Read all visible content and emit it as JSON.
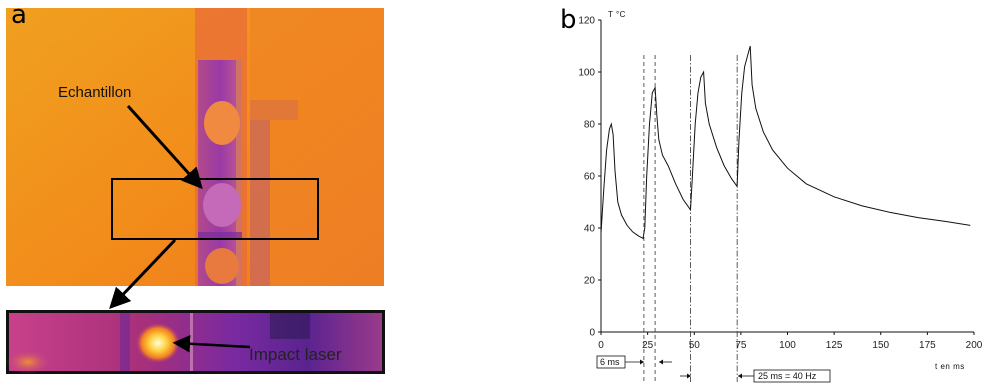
{
  "panel_a": {
    "letter": "a",
    "label_sample": "Echantillon",
    "label_impact": "Impact laser"
  },
  "panel_b": {
    "letter": "b",
    "annotations": {
      "pulse_width": "6 ms",
      "period": "25 ms  =  40 Hz"
    }
  },
  "chart_data": {
    "type": "line",
    "ylabel": "T °C",
    "xlabel": "t en ms",
    "xlim": [
      0,
      200
    ],
    "ylim": [
      0,
      120
    ],
    "xticks": [
      "0",
      "25",
      "50",
      "75",
      "100",
      "125",
      "150",
      "175",
      "200"
    ],
    "yticks": [
      "0",
      "20",
      "40",
      "60",
      "80",
      "100",
      "120"
    ],
    "grid": false,
    "vlines": [
      {
        "x": 23,
        "style": "dashed"
      },
      {
        "x": 29,
        "style": "dashed"
      },
      {
        "x": 48,
        "style": "dashdot"
      },
      {
        "x": 73,
        "style": "dashdot"
      }
    ],
    "series": [
      {
        "x": [
          0,
          1.5,
          3,
          4.5,
          5.5,
          6.5,
          7.5,
          9,
          11,
          14,
          17,
          20,
          22.5,
          23.5,
          24.5,
          26,
          27.5,
          29,
          30,
          31,
          33,
          36,
          40,
          44,
          48,
          49,
          50.5,
          52,
          53.5,
          55,
          56,
          58,
          62,
          66,
          70,
          73,
          74,
          75.5,
          77,
          78.5,
          80,
          81,
          83,
          87,
          92,
          100,
          110,
          125,
          140,
          155,
          170,
          185,
          198
        ],
        "y": [
          38,
          55,
          70,
          78,
          80,
          76,
          62,
          50,
          45,
          41,
          38.5,
          37,
          36,
          40,
          60,
          80,
          92,
          94,
          83,
          74,
          68,
          64,
          57,
          51,
          47,
          60,
          80,
          92,
          98,
          100,
          88,
          80,
          71,
          64,
          59,
          56,
          74,
          92,
          102,
          106,
          110,
          95,
          86,
          77,
          70,
          63,
          57,
          52,
          48.5,
          46,
          44,
          42.5,
          41
        ]
      }
    ]
  }
}
